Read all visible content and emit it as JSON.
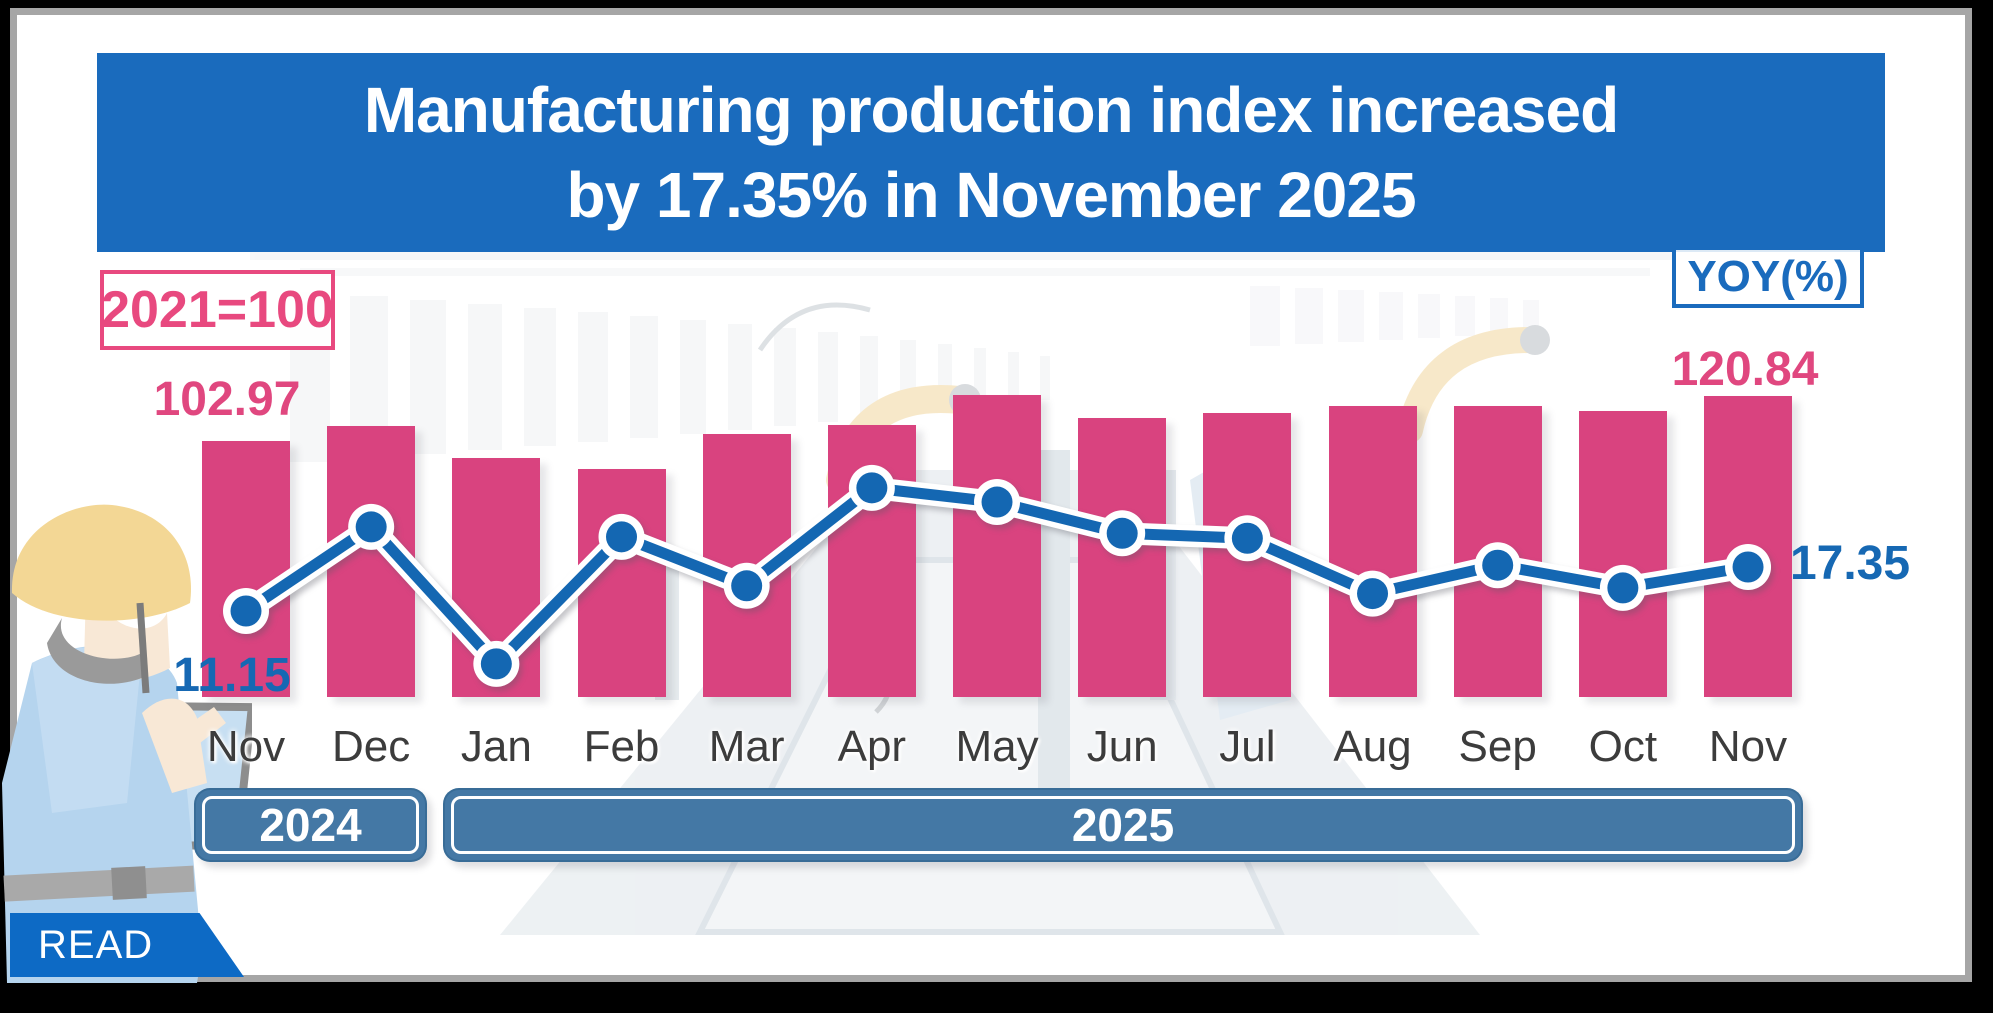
{
  "page": {
    "background": "#000000",
    "card_border": "#a6a6a6",
    "card_background": "#ffffff"
  },
  "header": {
    "title_line1": "Manufacturing production index increased",
    "title_line2": "by 17.35% in November 2025",
    "background": "#1a6bbd",
    "text_color": "#ffffff"
  },
  "badges": {
    "base_year": {
      "label": "2021=100",
      "color": "#e8497f"
    },
    "unit": {
      "label": "YOY(%)",
      "color": "#1a6bbd"
    }
  },
  "read_button": {
    "label": "READ",
    "background": "#0d6ac5",
    "text_color": "#ffffff"
  },
  "chart_data": {
    "type": "bar",
    "subtype": "bar-line-combo",
    "categories": [
      "Nov",
      "Dec",
      "Jan",
      "Feb",
      "Mar",
      "Apr",
      "May",
      "Jun",
      "Jul",
      "Aug",
      "Sep",
      "Oct",
      "Nov"
    ],
    "series": [
      {
        "name": "Manufacturing production index (2021=100)",
        "type": "bar",
        "color": "#d9437f",
        "values": [
          102.97,
          108.9,
          96.0,
          91.6,
          105.7,
          109.3,
          121.3,
          112.1,
          114.1,
          116.9,
          116.9,
          114.9,
          120.84
        ]
      },
      {
        "name": "YOY(%)",
        "type": "line",
        "color": "#1467b2",
        "values": [
          11.15,
          23.0,
          3.7,
          21.6,
          14.7,
          28.5,
          26.5,
          22.1,
          21.4,
          13.6,
          17.6,
          14.4,
          17.35
        ]
      }
    ],
    "data_labels": {
      "index_first": "102.97",
      "index_last": "120.84",
      "yoy_first": "11.15",
      "yoy_last": "17.35"
    },
    "year_bands": [
      {
        "label": "2024",
        "months": [
          "Nov",
          "Dec"
        ]
      },
      {
        "label": "2025",
        "months": [
          "Jan",
          "Nov"
        ]
      }
    ],
    "axes": {
      "y_axis_visible": false,
      "gridlines": false,
      "bar_baseline": 0
    },
    "legend_position": "none"
  },
  "decor": {
    "worker_illustration": "worker-with-hardhat-using-tablet",
    "background_watermark": "factory-assembly-line"
  }
}
